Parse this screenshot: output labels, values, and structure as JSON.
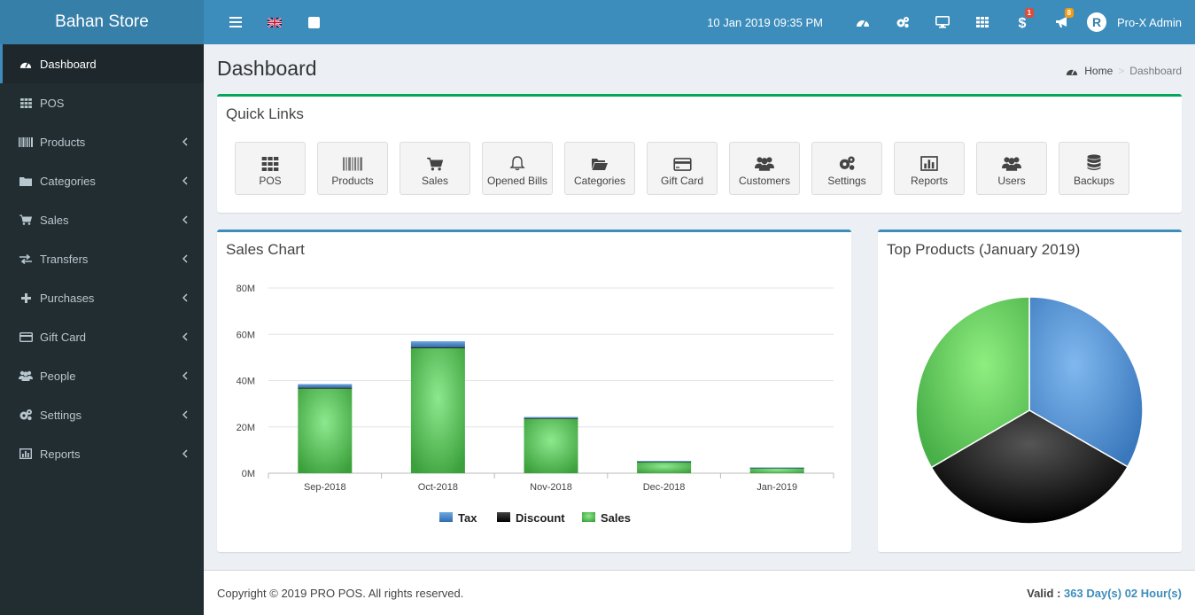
{
  "app": {
    "name": "Bahan Store"
  },
  "header": {
    "datetime": "10 Jan 2019 09:35 PM",
    "notifications": {
      "sales_badge": "1",
      "alerts_badge": "8"
    },
    "user": {
      "avatar_letter": "R",
      "name": "Pro-X Admin"
    }
  },
  "sidebar": {
    "items": [
      {
        "label": "Dashboard",
        "icon": "dashboard-icon",
        "active": true
      },
      {
        "label": "POS",
        "icon": "grid-icon"
      },
      {
        "label": "Products",
        "icon": "barcode-icon"
      },
      {
        "label": "Categories",
        "icon": "folder-icon"
      },
      {
        "label": "Sales",
        "icon": "cart-icon"
      },
      {
        "label": "Transfers",
        "icon": "exchange-icon"
      },
      {
        "label": "Purchases",
        "icon": "plus-icon"
      },
      {
        "label": "Gift Card",
        "icon": "credit-card-icon"
      },
      {
        "label": "People",
        "icon": "users-icon"
      },
      {
        "label": "Settings",
        "icon": "cogs-icon"
      },
      {
        "label": "Reports",
        "icon": "bar-chart-icon"
      }
    ]
  },
  "page": {
    "title": "Dashboard"
  },
  "breadcrumb": {
    "home": "Home",
    "current": "Dashboard"
  },
  "quick_links": {
    "title": "Quick Links",
    "items": [
      {
        "label": "POS",
        "icon": "grid-icon"
      },
      {
        "label": "Products",
        "icon": "barcode-icon"
      },
      {
        "label": "Sales",
        "icon": "cart-icon"
      },
      {
        "label": "Opened Bills",
        "icon": "bell-icon"
      },
      {
        "label": "Categories",
        "icon": "folder-open-icon"
      },
      {
        "label": "Gift Card",
        "icon": "credit-card-icon"
      },
      {
        "label": "Customers",
        "icon": "users-icon"
      },
      {
        "label": "Settings",
        "icon": "cogs-icon"
      },
      {
        "label": "Reports",
        "icon": "bar-chart-icon"
      },
      {
        "label": "Users",
        "icon": "users-icon"
      },
      {
        "label": "Backups",
        "icon": "database-icon"
      }
    ]
  },
  "sales_chart": {
    "title": "Sales Chart"
  },
  "top_products": {
    "title": "Top Products (January 2019)"
  },
  "chart_data": [
    {
      "type": "bar",
      "stacked": true,
      "title": "Sales Chart",
      "categories": [
        "Sep-2018",
        "Oct-2018",
        "Nov-2018",
        "Dec-2018",
        "Jan-2019"
      ],
      "y_ticks": [
        "80M",
        "60M",
        "40M",
        "20M",
        "0M"
      ],
      "ylim": [
        0,
        80
      ],
      "series": [
        {
          "name": "Sales",
          "color": "#4cae4c",
          "values": [
            36.5,
            54,
            23.5,
            5,
            2.3
          ]
        },
        {
          "name": "Discount",
          "color": "#111111",
          "values": [
            0.5,
            0.5,
            0.3,
            0.1,
            0.1
          ]
        },
        {
          "name": "Tax",
          "color": "#3c7fc4",
          "values": [
            1.5,
            2.5,
            0.5,
            0.2,
            0.1
          ]
        }
      ],
      "legend": [
        "Tax",
        "Discount",
        "Sales"
      ],
      "legend_position": "bottom",
      "grid": true
    },
    {
      "type": "pie",
      "title": "Top Products (January 2019)",
      "slices": [
        {
          "value": 33.3,
          "color": "#4a90d9"
        },
        {
          "value": 33.3,
          "color": "#1a1a1a"
        },
        {
          "value": 33.4,
          "color": "#5cc05c"
        }
      ]
    }
  ],
  "footer": {
    "copyright": "Copyright © 2019 PRO POS. All rights reserved.",
    "valid_label": "Valid :",
    "valid_value": "363 Day(s) 02 Hour(s)"
  }
}
